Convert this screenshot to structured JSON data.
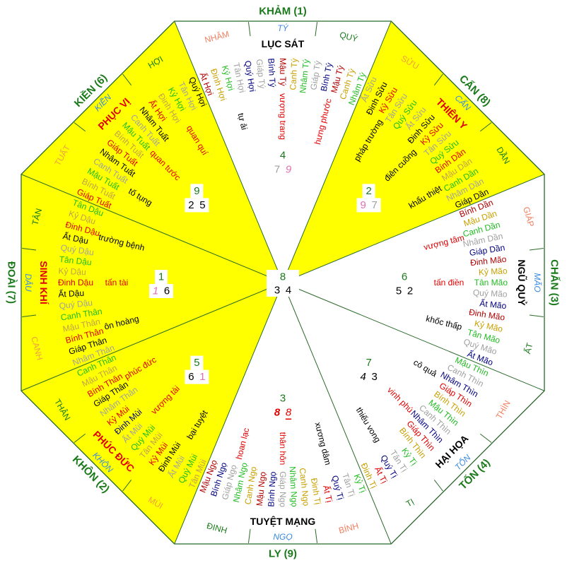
{
  "colors": {
    "dr": "#b00000",
    "r": "#e00000",
    "y": "#c8a000",
    "g": "#22bb22",
    "gr": "#a0a0a0",
    "n": "#000080",
    "k": "#000000",
    "t": "#c0a050",
    "pk": "#e070b0",
    "dg": "#1a7a1a",
    "sal": "#f08060",
    "bl": "#3a8ae0",
    "or": "#f0a040",
    "fill_yellow": "#ffff00",
    "line": "#2a6a2a"
  },
  "center": {
    "top": "8",
    "left": "3",
    "right": "4"
  },
  "sectors": [
    {
      "id": "khan",
      "trigram": "KHẢM (1)",
      "star": "LỤC SÁT",
      "star_color": "k",
      "yellow": false,
      "mountains": [
        {
          "t": "NHÂM",
          "c": "sal"
        },
        {
          "t": "TÝ",
          "c": "bl"
        },
        {
          "t": "QUÝ",
          "c": "dg"
        }
      ],
      "flying": {
        "top": {
          "v": "4",
          "c": "dg"
        },
        "left": {
          "v": "7",
          "c": "gr"
        },
        "right": {
          "v": "9",
          "c": "pk",
          "i": true
        }
      },
      "words": [
        {
          "t": "tự ải",
          "c": "k"
        },
        {
          "t": "vượng trang",
          "c": "r"
        },
        {
          "t": "hưng phước",
          "c": "r"
        }
      ],
      "names": [
        {
          "t": "Ất Hợi",
          "c": "dr"
        },
        {
          "t": "Đinh Hợi",
          "c": "y"
        },
        {
          "t": "Kỷ Hợi",
          "c": "g"
        },
        {
          "t": "Tân Hợi",
          "c": "gr"
        },
        {
          "t": "Quý Hợi",
          "c": "n"
        },
        {
          "t": "Giáp Tý",
          "c": "gr"
        },
        {
          "t": "Bính Tý",
          "c": "n"
        },
        {
          "t": "Mậu Tý",
          "c": "dr"
        },
        {
          "t": "Canh Tý",
          "c": "y"
        },
        {
          "t": "Nhâm Tý",
          "c": "g"
        },
        {
          "t": "Giáp Tý",
          "c": "gr"
        },
        {
          "t": "Bính Tý",
          "c": "n"
        },
        {
          "t": "Mậu Tý",
          "c": "dr"
        },
        {
          "t": "Canh Tý",
          "c": "y"
        },
        {
          "t": "Nhâm Tý",
          "c": "g"
        }
      ]
    },
    {
      "id": "can",
      "trigram": "CẤN (8)",
      "star": "THIÊN Y",
      "star_color": "r",
      "yellow": true,
      "mountains": [
        {
          "t": "SỬU",
          "c": "or"
        },
        {
          "t": "CẤN",
          "c": "bl"
        },
        {
          "t": "DẦN",
          "c": "dg"
        }
      ],
      "flying": {
        "top": {
          "v": "2",
          "c": "dg"
        },
        "left": {
          "v": "9",
          "c": "pk"
        },
        "right": {
          "v": "7",
          "c": "gr"
        }
      },
      "words": [
        {
          "t": "pháp trường",
          "c": "k"
        },
        {
          "t": "điên cuồng",
          "c": "k"
        },
        {
          "t": "khẩu thiệt",
          "c": "k"
        }
      ],
      "names": [
        {
          "t": "Ất Sửu",
          "c": "gr"
        },
        {
          "t": "Đinh Sửu",
          "c": "k"
        },
        {
          "t": "Kỷ Sửu",
          "c": "r"
        },
        {
          "t": "Tân Sửu",
          "c": "gr"
        },
        {
          "t": "Quý Sửu",
          "c": "g"
        },
        {
          "t": "Ất Sửu",
          "c": "gr"
        },
        {
          "t": "Đinh Sửu",
          "c": "k"
        },
        {
          "t": "Kỷ Sửu",
          "c": "r"
        },
        {
          "t": "Tân Sửu",
          "c": "gr"
        },
        {
          "t": "Quý Sửu",
          "c": "g"
        },
        {
          "t": "Bính Dần",
          "c": "r"
        },
        {
          "t": "Mậu Dần",
          "c": "t"
        },
        {
          "t": "Canh Dần",
          "c": "g"
        },
        {
          "t": "Nhâm Dần",
          "c": "gr"
        },
        {
          "t": "Giáp Dần",
          "c": "k"
        }
      ]
    },
    {
      "id": "chan",
      "trigram": "CHẤN (3)",
      "star": "NGŨ QUỶ",
      "star_color": "k",
      "yellow": false,
      "mountains": [
        {
          "t": "GIÁP",
          "c": "sal"
        },
        {
          "t": "MÃO",
          "c": "bl"
        },
        {
          "t": "ẤT",
          "c": "dg"
        }
      ],
      "flying": {
        "top": {
          "v": "6",
          "c": "dg"
        },
        "left": {
          "v": "5",
          "c": "k"
        },
        "right": {
          "v": "2",
          "c": "k"
        }
      },
      "words": [
        {
          "t": "vượng tâm",
          "c": "r"
        },
        {
          "t": "tấn điền",
          "c": "r"
        },
        {
          "t": "khốc thấp",
          "c": "k"
        }
      ],
      "names": [
        {
          "t": "Bính Dần",
          "c": "dr"
        },
        {
          "t": "Mậu Dần",
          "c": "y"
        },
        {
          "t": "Canh Dần",
          "c": "g"
        },
        {
          "t": "Nhâm Dần",
          "c": "gr"
        },
        {
          "t": "Giáp Dần",
          "c": "n"
        },
        {
          "t": "Đinh Mão",
          "c": "dr"
        },
        {
          "t": "Kỷ Mão",
          "c": "y"
        },
        {
          "t": "Tân Mão",
          "c": "g"
        },
        {
          "t": "Quý Mão",
          "c": "gr"
        },
        {
          "t": "Ất Mão",
          "c": "n"
        },
        {
          "t": "Đinh Mão",
          "c": "dr"
        },
        {
          "t": "Kỷ Mão",
          "c": "y"
        },
        {
          "t": "Tân Mão",
          "c": "g"
        },
        {
          "t": "Quý Mão",
          "c": "gr"
        },
        {
          "t": "Ất Mão",
          "c": "n"
        }
      ]
    },
    {
      "id": "ton",
      "trigram": "TỐN (4)",
      "star": "HẠI HỌA",
      "star_color": "k",
      "yellow": false,
      "mountains": [
        {
          "t": "THÌN",
          "c": "sal"
        },
        {
          "t": "TỐN",
          "c": "bl"
        },
        {
          "t": "TỊ",
          "c": "dg"
        }
      ],
      "flying": {
        "top": {
          "v": "7",
          "c": "dg"
        },
        "left": {
          "v": "4",
          "c": "k",
          "i": true
        },
        "right": {
          "v": "3",
          "c": "k"
        }
      },
      "words": [
        {
          "t": "cô quả",
          "c": "k"
        },
        {
          "t": "vinh phú",
          "c": "r"
        },
        {
          "t": "thiếu vong",
          "c": "k"
        }
      ],
      "names": [
        {
          "t": "Mậu Thìn",
          "c": "g"
        },
        {
          "t": "Canh Thìn",
          "c": "gr"
        },
        {
          "t": "Nhâm Thìn",
          "c": "n"
        },
        {
          "t": "Giáp Thìn",
          "c": "r"
        },
        {
          "t": "Bính Thìn",
          "c": "y"
        },
        {
          "t": "Mậu Thìn",
          "c": "g"
        },
        {
          "t": "Canh Thìn",
          "c": "gr"
        },
        {
          "t": "Nhâm Thìn",
          "c": "n"
        },
        {
          "t": "Giáp Thìn",
          "c": "r"
        },
        {
          "t": "Bính Thìn",
          "c": "y"
        },
        {
          "t": "Kỷ Tị",
          "c": "g"
        },
        {
          "t": "Tân Tị",
          "c": "gr"
        },
        {
          "t": "Quý Tị",
          "c": "n"
        },
        {
          "t": "Ất Tị",
          "c": "r"
        },
        {
          "t": "Đinh Tị",
          "c": "y"
        }
      ]
    },
    {
      "id": "ly",
      "trigram": "LY (9)",
      "star": "TUYỆT MẠNG",
      "star_color": "k",
      "yellow": false,
      "mountains": [
        {
          "t": "BÍNH",
          "c": "sal"
        },
        {
          "t": "NGỌ",
          "c": "bl"
        },
        {
          "t": "ĐINH",
          "c": "dg"
        }
      ],
      "flying": {
        "top": {
          "v": "3",
          "c": "dg"
        },
        "left": {
          "v": "8",
          "c": "r",
          "i": true,
          "b": true
        },
        "right": {
          "v": "8",
          "c": "r",
          "i": true,
          "u": true
        }
      },
      "words": [
        {
          "t": "xương dâm",
          "c": "k"
        },
        {
          "t": "thân hôn",
          "c": "r"
        },
        {
          "t": "hoan lạc",
          "c": "r"
        }
      ],
      "names": [
        {
          "t": "Kỷ Tị",
          "c": "g"
        },
        {
          "t": "Tân Tị",
          "c": "gr"
        },
        {
          "t": "Quý Tị",
          "c": "n"
        },
        {
          "t": "Ất Tị",
          "c": "r"
        },
        {
          "t": "Đinh Tị",
          "c": "y"
        },
        {
          "t": "Canh Ngọ",
          "c": "y"
        },
        {
          "t": "Nhâm Ngọ",
          "c": "g"
        },
        {
          "t": "Giáp Ngọ",
          "c": "gr"
        },
        {
          "t": "Bính Ngọ",
          "c": "n"
        },
        {
          "t": "Mậu Ngọ",
          "c": "dr"
        },
        {
          "t": "Canh Ngọ",
          "c": "y"
        },
        {
          "t": "Nhâm Ngọ",
          "c": "g"
        },
        {
          "t": "Giáp Ngọ",
          "c": "gr"
        },
        {
          "t": "Bính Ngọ",
          "c": "n"
        },
        {
          "t": "Mậu Ngọ",
          "c": "dr"
        }
      ]
    },
    {
      "id": "khon",
      "trigram": "KHÔN (2)",
      "star": "PHÚC ĐỨC",
      "star_color": "r",
      "yellow": true,
      "mountains": [
        {
          "t": "MÙI",
          "c": "or"
        },
        {
          "t": "KHÔN",
          "c": "bl"
        },
        {
          "t": "THÂN",
          "c": "dg"
        }
      ],
      "flying": {
        "top": {
          "v": "5",
          "c": "dg"
        },
        "left": {
          "v": "6",
          "c": "k"
        },
        "right": {
          "v": "1",
          "c": "pk"
        }
      },
      "words": [
        {
          "t": "bại tuyệt",
          "c": "k"
        },
        {
          "t": "vượng tài",
          "c": "r"
        },
        {
          "t": "phúc đức",
          "c": "r"
        }
      ],
      "names": [
        {
          "t": "Tân Mùi",
          "c": "t"
        },
        {
          "t": "Quý Mùi",
          "c": "g"
        },
        {
          "t": "Ất Mùi",
          "c": "gr"
        },
        {
          "t": "Đinh Mùi",
          "c": "k"
        },
        {
          "t": "Kỷ Mùi",
          "c": "r"
        },
        {
          "t": "Tân Mùi",
          "c": "t"
        },
        {
          "t": "Quý Mùi",
          "c": "g"
        },
        {
          "t": "Ất Mùi",
          "c": "gr"
        },
        {
          "t": "Đinh Mùi",
          "c": "n"
        },
        {
          "t": "Kỷ Mùi",
          "c": "r"
        },
        {
          "t": "Nhâm Thân",
          "c": "gr"
        },
        {
          "t": "Giáp Thân",
          "c": "k"
        },
        {
          "t": "Bính Thân",
          "c": "r"
        },
        {
          "t": "Mậu Thân",
          "c": "t"
        },
        {
          "t": "Canh Thân",
          "c": "g"
        }
      ]
    },
    {
      "id": "doai",
      "trigram": "ĐOÀI (7)",
      "star": "SINH KHÍ",
      "star_color": "r",
      "yellow": true,
      "mountains": [
        {
          "t": "CANH",
          "c": "or"
        },
        {
          "t": "DẬU",
          "c": "bl"
        },
        {
          "t": "TÂN",
          "c": "dg"
        }
      ],
      "flying": {
        "top": {
          "v": "1",
          "c": "dg"
        },
        "left": {
          "v": "1",
          "c": "pk",
          "i": true
        },
        "right": {
          "v": "6",
          "c": "k"
        }
      },
      "words": [
        {
          "t": "ôn hoàng",
          "c": "k"
        },
        {
          "t": "tấn tài",
          "c": "r"
        },
        {
          "t": "trường bệnh",
          "c": "k"
        }
      ],
      "names": [
        {
          "t": "Nhâm Thân",
          "c": "gr"
        },
        {
          "t": "Giáp Thân",
          "c": "k"
        },
        {
          "t": "Bính Thân",
          "c": "r"
        },
        {
          "t": "Mậu Thân",
          "c": "t"
        },
        {
          "t": "Canh Thân",
          "c": "g"
        },
        {
          "t": "Quý Dậu",
          "c": "gr"
        },
        {
          "t": "Ất Dậu",
          "c": "k"
        },
        {
          "t": "Đinh Dậu",
          "c": "r"
        },
        {
          "t": "Kỷ Dậu",
          "c": "t"
        },
        {
          "t": "Tân Dậu",
          "c": "g"
        },
        {
          "t": "Quý Dậu",
          "c": "gr"
        },
        {
          "t": "Ất Dậu",
          "c": "k"
        },
        {
          "t": "Đinh Dậu",
          "c": "r"
        },
        {
          "t": "Kỷ Dậu",
          "c": "t"
        },
        {
          "t": "Tân Dậu",
          "c": "g"
        }
      ]
    },
    {
      "id": "kien",
      "trigram": "KIỀN (6)",
      "star": "PHỤC VỊ",
      "star_color": "r",
      "yellow": true,
      "mountains": [
        {
          "t": "TUẤT",
          "c": "or"
        },
        {
          "t": "KIỀN",
          "c": "bl"
        },
        {
          "t": "HỢI",
          "c": "dg"
        }
      ],
      "flying": {
        "top": {
          "v": "9",
          "c": "dg"
        },
        "left": {
          "v": "2",
          "c": "k"
        },
        "right": {
          "v": "5",
          "c": "k"
        }
      },
      "words": [
        {
          "t": "tố tụng",
          "c": "k"
        },
        {
          "t": "quan tước",
          "c": "r"
        },
        {
          "t": "quan quí",
          "c": "r"
        }
      ],
      "names": [
        {
          "t": "Giáp Tuất",
          "c": "r"
        },
        {
          "t": "Bính Tuất",
          "c": "t"
        },
        {
          "t": "Mậu Tuất",
          "c": "g"
        },
        {
          "t": "Canh Tuất",
          "c": "gr"
        },
        {
          "t": "Nhâm Tuất",
          "c": "k"
        },
        {
          "t": "Giáp Tuất",
          "c": "r"
        },
        {
          "t": "Bính Tuất",
          "c": "t"
        },
        {
          "t": "Mậu Tuất",
          "c": "g"
        },
        {
          "t": "Canh Tuất",
          "c": "gr"
        },
        {
          "t": "Nhâm Tuất",
          "c": "k"
        },
        {
          "t": "Ất Hợi",
          "c": "r"
        },
        {
          "t": "Đinh Hợi",
          "c": "t"
        },
        {
          "t": "Kỷ Hợi",
          "c": "g"
        },
        {
          "t": "Tân Hợi",
          "c": "gr"
        },
        {
          "t": "Quý Hợi",
          "c": "k"
        }
      ]
    }
  ]
}
